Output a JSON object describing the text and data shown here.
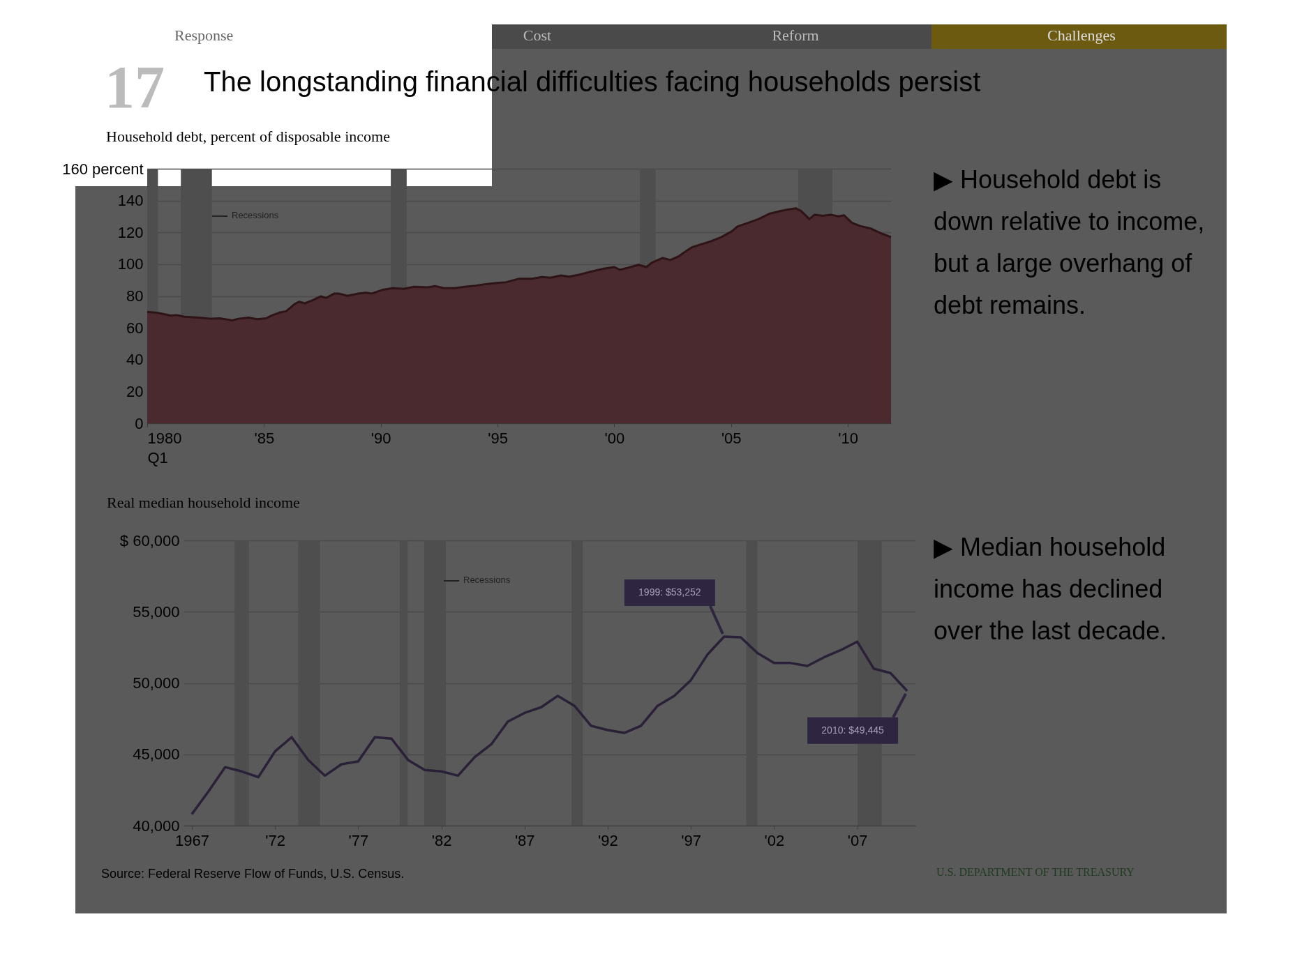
{
  "chart_data": [
    {
      "type": "area",
      "title": "The longstanding financial difficulties facing households persist",
      "subtitle": "Household debt, percent of disposable income",
      "color": "#4a2a2e",
      "x": [
        1980,
        1980.46,
        1981,
        1981.25,
        1981.6,
        1982.2,
        1982.75,
        1983.1,
        1983.65,
        1983.9,
        1984.35,
        1984.7,
        1985.1,
        1985.37,
        1985.7,
        1985.95,
        1986.3,
        1986.5,
        1986.75,
        1987.1,
        1987.43,
        1987.66,
        1988,
        1988.23,
        1988.57,
        1989.03,
        1989.37,
        1989.6,
        1990.06,
        1990.5,
        1990.98,
        1991.43,
        1992,
        1992.35,
        1992.7,
        1993.15,
        1993.6,
        1994.06,
        1994.5,
        1994.98,
        1995.32,
        1995.9,
        1996.46,
        1996.9,
        1997.27,
        1997.72,
        1998.06,
        1998.52,
        1998.98,
        1999.55,
        2000,
        2000.24,
        2000.7,
        2001.04,
        2001.38,
        2001.6,
        2002.07,
        2002.41,
        2002.75,
        2002.98,
        2003.32,
        2003.67,
        2004.12,
        2004.58,
        2005.04,
        2005.27,
        2005.73,
        2006.18,
        2006.64,
        2007.1,
        2007.44,
        2007.78,
        2008,
        2008.35,
        2008.58,
        2008.93,
        2009.27,
        2009.61,
        2009.84,
        2010.18,
        2010.53,
        2010.99,
        2011.44,
        2011.85
      ],
      "values": [
        70,
        69.4,
        67.7,
        68,
        67,
        66.4,
        65.7,
        66,
        64.7,
        65.7,
        66.4,
        65.4,
        66,
        68,
        69.7,
        70.4,
        74.8,
        76.4,
        75.4,
        77.4,
        79.8,
        78.8,
        81.5,
        81.5,
        80.1,
        81.5,
        82.1,
        81.5,
        83.8,
        84.9,
        84.5,
        85.8,
        85.5,
        86.2,
        84.9,
        84.9,
        85.8,
        86.5,
        87.5,
        88.2,
        88.5,
        90.8,
        90.8,
        91.9,
        91.5,
        92.9,
        92.2,
        93.5,
        95.2,
        97.2,
        98.2,
        96.5,
        98.2,
        99.6,
        98.2,
        100.9,
        103.9,
        102.6,
        104.9,
        107.3,
        110.6,
        112.3,
        114.3,
        117,
        120.7,
        123.7,
        126,
        128.4,
        131.7,
        133.4,
        134.4,
        135.1,
        133.4,
        128.4,
        131.1,
        130.4,
        131.1,
        130.1,
        130.7,
        126,
        124,
        122.4,
        119.3,
        117
      ],
      "xlim": [
        1980,
        2011.85
      ],
      "xticks": [
        {
          "value": 1980,
          "label": "1980\nQ1"
        },
        {
          "value": 1985,
          "label": "'85"
        },
        {
          "value": 1990,
          "label": "'90"
        },
        {
          "value": 1995,
          "label": "'95"
        },
        {
          "value": 2000,
          "label": "'00"
        },
        {
          "value": 2005,
          "label": "'05"
        },
        {
          "value": 2010,
          "label": "'10"
        }
      ],
      "ylim": [
        0,
        160
      ],
      "yticks": [
        0,
        20,
        40,
        60,
        80,
        100,
        120,
        140,
        {
          "value": 160,
          "label": "160 percent"
        }
      ],
      "grid": "y",
      "bands": [
        {
          "axis": "x",
          "from": 1980,
          "to": 1980.46,
          "color": "#4e4e4e"
        },
        {
          "axis": "x",
          "from": 1981.44,
          "to": 1982.77,
          "color": "#4e4e4e"
        },
        {
          "axis": "x",
          "from": 1990.43,
          "to": 1991.11,
          "color": "#4e4e4e"
        },
        {
          "axis": "x",
          "from": 2001.1,
          "to": 2001.77,
          "color": "#4e4e4e"
        },
        {
          "axis": "x",
          "from": 2007.88,
          "to": 2009.34,
          "color": "#4e4e4e"
        }
      ],
      "annotations": [
        "17",
        "Response",
        "Cost",
        "Reform",
        "Challenges",
        "Recessions",
        "▶ Household debt is down relative to income, but a large overhang of debt remains."
      ]
    },
    {
      "type": "line",
      "title": "Real median household income",
      "color": "#2a2038",
      "x": [
        1967,
        1968,
        1969,
        1970,
        1971,
        1972,
        1973,
        1974,
        1975,
        1976,
        1977,
        1978,
        1979,
        1980,
        1981,
        1982,
        1983,
        1984,
        1985,
        1986,
        1987,
        1988,
        1989,
        1990,
        1991,
        1992,
        1993,
        1994,
        1995,
        1996,
        1997,
        1998,
        1999,
        2000,
        2001,
        2002,
        2003,
        2004,
        2005,
        2006,
        2007,
        2008,
        2009,
        2010
      ],
      "values": [
        40800,
        42400,
        44100,
        43800,
        43400,
        45200,
        46200,
        44600,
        43500,
        44300,
        44500,
        46200,
        46100,
        44600,
        43900,
        43800,
        43500,
        44800,
        45700,
        47300,
        47900,
        48300,
        49100,
        48400,
        47000,
        46700,
        46500,
        47000,
        48400,
        49100,
        50200,
        52000,
        53252,
        53200,
        52100,
        51400,
        51400,
        51200,
        51800,
        52300,
        52900,
        51000,
        50700,
        49445
      ],
      "xlim": [
        1966.5,
        2010.5
      ],
      "xticks": [
        1967,
        {
          "value": 1972,
          "label": "'72"
        },
        {
          "value": 1977,
          "label": "'77"
        },
        {
          "value": 1982,
          "label": "'82"
        },
        {
          "value": 1987,
          "label": "'87"
        },
        {
          "value": 1992,
          "label": "'92"
        },
        {
          "value": 1997,
          "label": "'97"
        },
        {
          "value": 2002,
          "label": "'02"
        },
        {
          "value": 2007,
          "label": "'07"
        }
      ],
      "ylim": [
        40000,
        60000
      ],
      "yticks": [
        {
          "value": 40000,
          "label": "40,000"
        },
        {
          "value": 45000,
          "label": "45,000"
        },
        {
          "value": 50000,
          "label": "50,000"
        },
        {
          "value": 55000,
          "label": "55,000"
        },
        {
          "value": 60000,
          "label": "$ 60,000"
        }
      ],
      "grid": "y",
      "bands": [
        {
          "axis": "x",
          "from": 1969.57,
          "to": 1970.43,
          "color": "#4e4e4e"
        },
        {
          "axis": "x",
          "from": 1973.4,
          "to": 1974.7,
          "color": "#4e4e4e"
        },
        {
          "axis": "x",
          "from": 1979.5,
          "to": 1979.97,
          "color": "#4e4e4e"
        },
        {
          "axis": "x",
          "from": 1980.97,
          "to": 1982.27,
          "color": "#4e4e4e"
        },
        {
          "axis": "x",
          "from": 1989.83,
          "to": 1990.5,
          "color": "#4e4e4e"
        },
        {
          "axis": "x",
          "from": 2000.33,
          "to": 2001,
          "color": "#4e4e4e"
        },
        {
          "axis": "x",
          "from": 2007.03,
          "to": 2008.47,
          "color": "#4e4e4e"
        }
      ],
      "annotations": [
        {
          "text": "1999: $53,252",
          "x": 1999,
          "y": 53252
        },
        {
          "text": "2010: $49,445",
          "x": 2010,
          "y": 49445
        },
        "Recessions",
        "▶ Median household income has declined over the last decade.",
        "Source: Federal Reserve Flow of Funds, U.S. Census.",
        "U.S. DEPARTMENT OF THE TREASURY"
      ]
    }
  ]
}
